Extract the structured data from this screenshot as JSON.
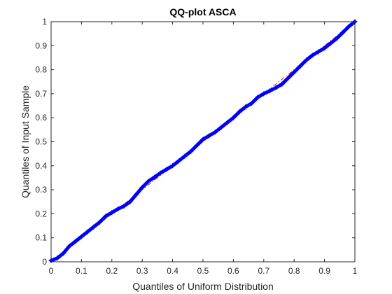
{
  "chart_data": {
    "type": "scatter",
    "title": "QQ-plot ASCA",
    "xlabel": "Quantiles of Uniform Distribution",
    "ylabel": "Quantiles of Input Sample",
    "xlim": [
      0,
      1
    ],
    "ylim": [
      0,
      1
    ],
    "xticks": [
      0,
      0.1,
      0.2,
      0.3,
      0.4,
      0.5,
      0.6,
      0.7,
      0.8,
      0.9,
      1
    ],
    "yticks": [
      0,
      0.1,
      0.2,
      0.3,
      0.4,
      0.5,
      0.6,
      0.7,
      0.8,
      0.9,
      1
    ],
    "xtick_labels": [
      "0",
      "0.1",
      "0.2",
      "0.3",
      "0.4",
      "0.5",
      "0.6",
      "0.7",
      "0.8",
      "0.9",
      "1"
    ],
    "ytick_labels": [
      "0",
      "0.1",
      "0.2",
      "0.3",
      "0.4",
      "0.5",
      "0.6",
      "0.7",
      "0.8",
      "0.9",
      "1"
    ],
    "grid": false,
    "series": [
      {
        "marker": "+",
        "color": "#0000ff",
        "points": [
          [
            0.0,
            0.005
          ],
          [
            0.02,
            0.015
          ],
          [
            0.04,
            0.035
          ],
          [
            0.06,
            0.065
          ],
          [
            0.08,
            0.085
          ],
          [
            0.1,
            0.105
          ],
          [
            0.12,
            0.125
          ],
          [
            0.14,
            0.145
          ],
          [
            0.16,
            0.165
          ],
          [
            0.18,
            0.19
          ],
          [
            0.2,
            0.205
          ],
          [
            0.22,
            0.22
          ],
          [
            0.24,
            0.232
          ],
          [
            0.26,
            0.25
          ],
          [
            0.28,
            0.28
          ],
          [
            0.3,
            0.31
          ],
          [
            0.32,
            0.335
          ],
          [
            0.34,
            0.352
          ],
          [
            0.36,
            0.37
          ],
          [
            0.38,
            0.385
          ],
          [
            0.4,
            0.4
          ],
          [
            0.42,
            0.42
          ],
          [
            0.44,
            0.44
          ],
          [
            0.46,
            0.46
          ],
          [
            0.48,
            0.485
          ],
          [
            0.5,
            0.51
          ],
          [
            0.52,
            0.525
          ],
          [
            0.54,
            0.54
          ],
          [
            0.56,
            0.56
          ],
          [
            0.58,
            0.58
          ],
          [
            0.6,
            0.6
          ],
          [
            0.62,
            0.625
          ],
          [
            0.64,
            0.645
          ],
          [
            0.66,
            0.66
          ],
          [
            0.68,
            0.685
          ],
          [
            0.7,
            0.7
          ],
          [
            0.72,
            0.712
          ],
          [
            0.74,
            0.725
          ],
          [
            0.76,
            0.74
          ],
          [
            0.78,
            0.765
          ],
          [
            0.8,
            0.79
          ],
          [
            0.82,
            0.815
          ],
          [
            0.84,
            0.84
          ],
          [
            0.86,
            0.86
          ],
          [
            0.88,
            0.875
          ],
          [
            0.9,
            0.89
          ],
          [
            0.92,
            0.91
          ],
          [
            0.94,
            0.93
          ],
          [
            0.96,
            0.955
          ],
          [
            0.98,
            0.98
          ],
          [
            1.0,
            1.0
          ]
        ]
      },
      {
        "type": "line",
        "color": "#ff0000",
        "style": "dashdot",
        "x": [
          0,
          1
        ],
        "y": [
          0,
          1
        ]
      }
    ]
  }
}
